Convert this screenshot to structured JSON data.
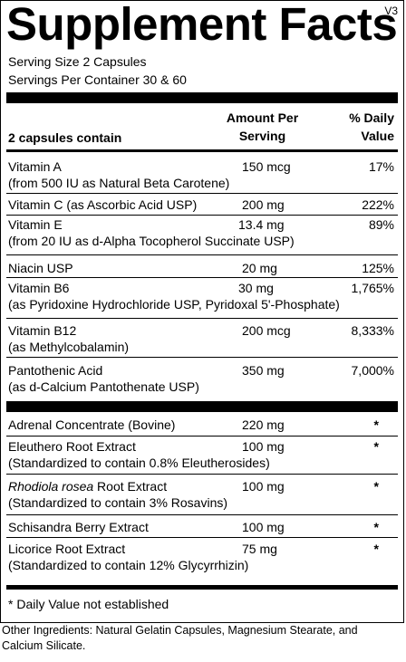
{
  "title": "Supplement Facts",
  "version": "V3",
  "serving_size": "Serving Size 2 Capsules",
  "servings_per_container": "Servings Per Container 30 & 60",
  "header": {
    "contents": "2 capsules contain",
    "amount_line1": "Amount Per",
    "amount_line2": "Serving",
    "dv_line1": "% Daily",
    "dv_line2": "Value"
  },
  "vitamins": [
    {
      "name": "Vitamin A",
      "sub": "(from 500 IU as Natural Beta Carotene)",
      "amount": "150 mcg",
      "dv": "17%"
    },
    {
      "name": "Vitamin C (as Ascorbic Acid USP)",
      "sub": "",
      "amount": "200 mg",
      "dv": "222%"
    },
    {
      "name": "Vitamin E",
      "sub": "(from 20 IU as d-Alpha Tocopherol Succinate USP)",
      "amount": "13.4 mg",
      "dv": "89%"
    },
    {
      "name": "Niacin USP",
      "sub": "",
      "amount": "20 mg",
      "dv": "125%"
    },
    {
      "name": "Vitamin B6",
      "sub": "(as Pyridoxine Hydrochloride USP, Pyridoxal 5'-Phosphate)",
      "amount": "30 mg",
      "dv": "1,765%"
    },
    {
      "name": "Vitamin B12",
      "sub": "(as Methylcobalamin)",
      "amount": "200 mcg",
      "dv": "8,333%"
    },
    {
      "name": "Pantothenic Acid",
      "sub": "(as d-Calcium Pantothenate USP)",
      "amount": "350 mg",
      "dv": "7,000%"
    }
  ],
  "extracts": [
    {
      "name": "Adrenal Concentrate  (Bovine)",
      "sub": "",
      "amount": "220 mg",
      "dv": "*"
    },
    {
      "name": "Eleuthero Root Extract",
      "sub": "(Standardized to contain 0.8% Eleutherosides)",
      "amount": "100 mg",
      "dv": "*"
    },
    {
      "name_italic": "Rhodiola rosea",
      "name": " Root Extract",
      "sub": "(Standardized to contain 3% Rosavins)",
      "amount": "100 mg",
      "dv": "*"
    },
    {
      "name": "Schisandra Berry Extract",
      "sub": "",
      "amount": "100 mg",
      "dv": "*"
    },
    {
      "name": "Licorice Root Extract",
      "sub": "(Standardized to contain 12% Glycyrrhizin)",
      "amount": "75 mg",
      "dv": "*"
    }
  ],
  "footnote": "* Daily Value not established",
  "other_ingredients": "Other Ingredients: Natural Gelatin Capsules, Magnesium Stearate, and Calcium Silicate."
}
